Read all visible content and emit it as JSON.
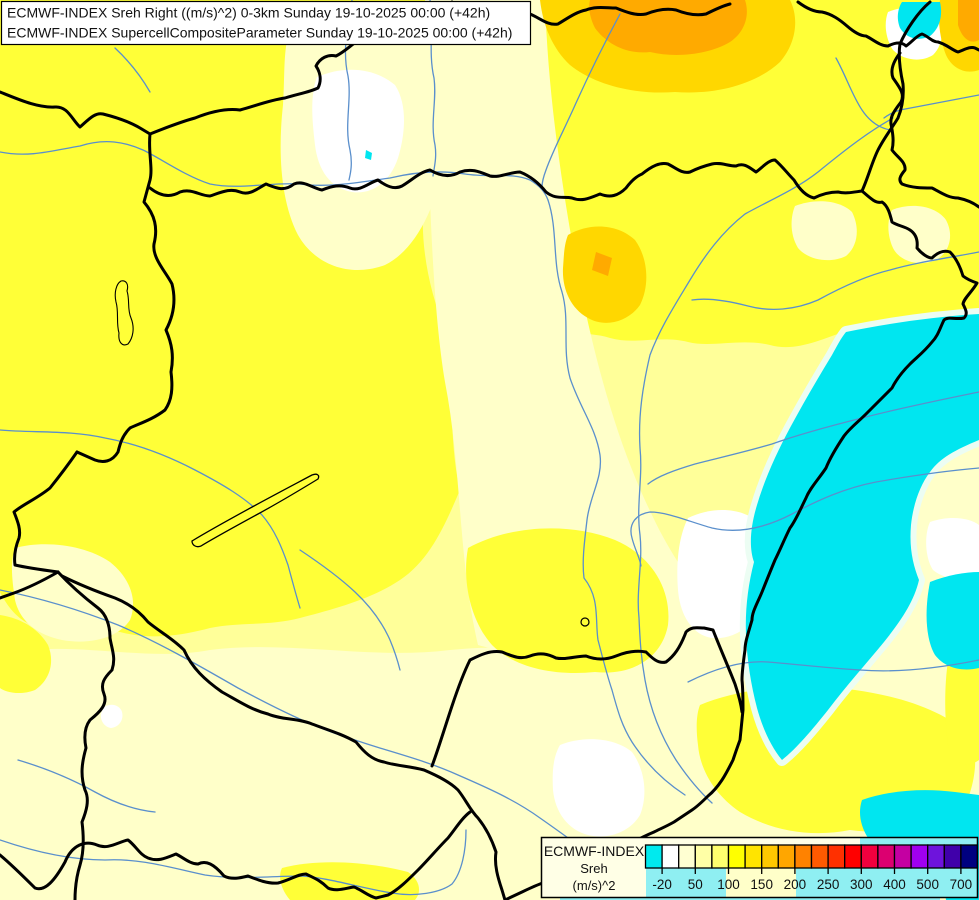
{
  "title": {
    "line1": "ECMWF-INDEX Sreh Right ((m/s)^2) 0-3km Sunday 19-10-2025 00:00 (+42h)",
    "line2": "ECMWF-INDEX SupercellCompositeParameter Sunday 19-10-2025 00:00 (+42h)"
  },
  "legend": {
    "source": "ECMWF-INDEX",
    "parameter": "Sreh",
    "units": "(m/s)^2",
    "colorbar": {
      "cell_colors": [
        "#00EAEE",
        "#FFFFFF",
        "#FFFFD2",
        "#FFFFA6",
        "#FFFF6E",
        "#FFFF00",
        "#FFE400",
        "#FFC800",
        "#FFA600",
        "#FF8200",
        "#FF5A00",
        "#FF3000",
        "#FF0000",
        "#F2003E",
        "#DC0070",
        "#C400A2",
        "#A000F0",
        "#6E14DC",
        "#4000AA",
        "#000080"
      ],
      "tick_labels": [
        "-20",
        "50",
        "100",
        "150",
        "200",
        "250",
        "300",
        "400",
        "500",
        "700"
      ],
      "tick_cell_boundaries": [
        1,
        3,
        5,
        7,
        9,
        11,
        13,
        15,
        17,
        19
      ]
    }
  },
  "map": {
    "colors": {
      "base": "#FFFF99",
      "bright": "#FFFF37",
      "cream": "#FFFFC9",
      "pale": "#FFFFE6",
      "white": "#FFFFFF",
      "gold": "#FFD700",
      "orange": "#FFAA00",
      "cyan": "#00E6F0",
      "cyan_light": "#8FEFF2",
      "fringe": "#ECFDF3",
      "river": "#5A8FCC",
      "border": "#000000"
    }
  }
}
